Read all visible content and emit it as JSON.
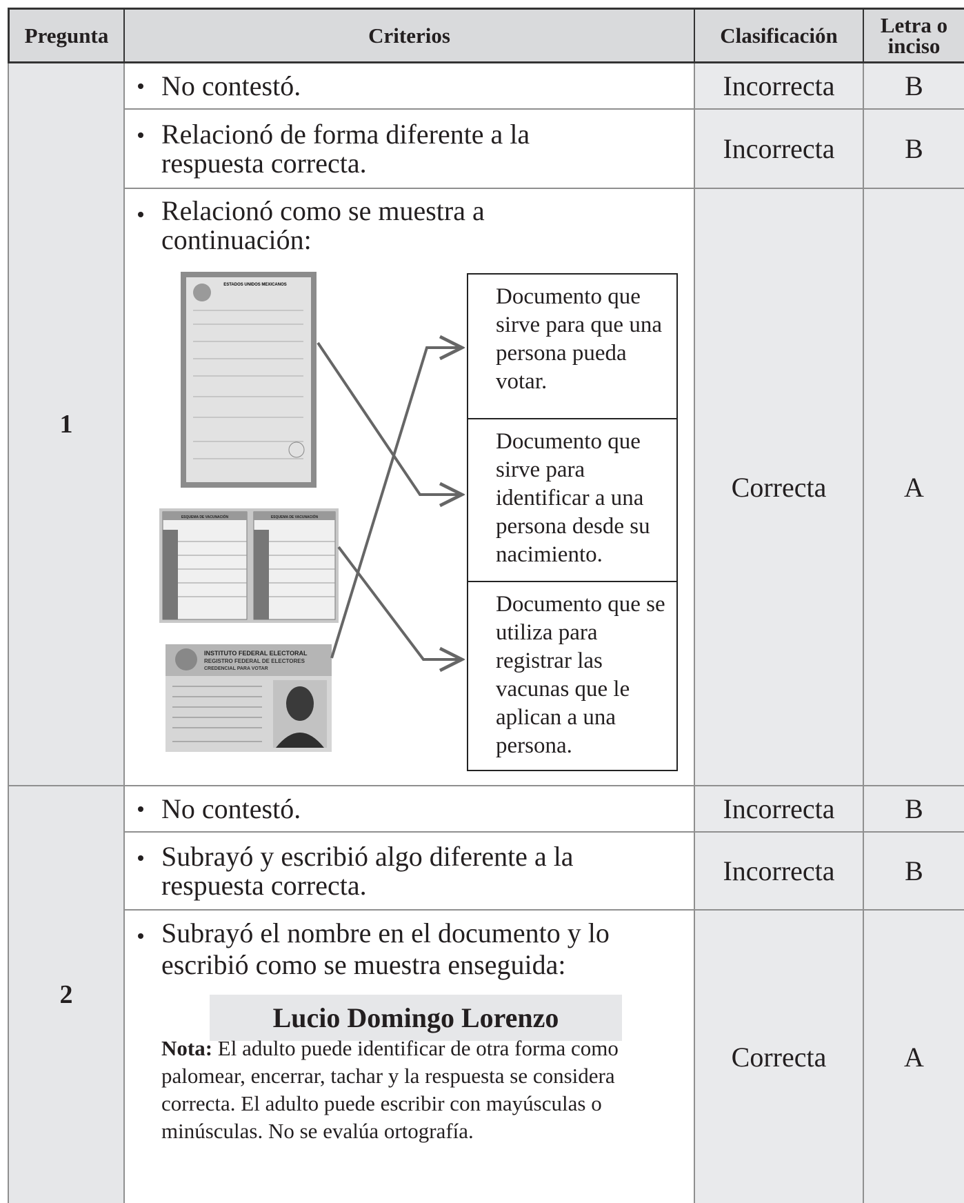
{
  "table": {
    "headers": [
      "Pregunta",
      "Criterios",
      "Clasificación",
      "Letra o inciso"
    ],
    "questions": [
      {
        "number": "1",
        "rows": [
          {
            "criterion": "No contestó.",
            "classification": "Incorrecta",
            "letter": "B"
          },
          {
            "criterion": "Relacionó de forma diferente a la respuesta correcta.",
            "classification": "Incorrecta",
            "letter": "B"
          },
          {
            "criterion": "Relacionó como se muestra a continuación:",
            "classification": "Correcta",
            "letter": "A",
            "boxes": [
              "Documento que sirve para que una persona pueda votar.",
              "Documento que sirve para identificar a una persona desde su nacimiento.",
              "Documento que se utiliza para registrar las vacunas que le aplican a una persona."
            ],
            "images": {
              "certificate": "ESTADOS UNIDOS MEXICANOS",
              "vaccination": [
                "ESQUEMA DE VACUNACIÓN",
                "ESQUEMA DE VACUNACIÓN"
              ],
              "voter_id": [
                "INSTITUTO FEDERAL ELECTORAL",
                "REGISTRO FEDERAL DE ELECTORES",
                "CREDENCIAL PARA VOTAR"
              ]
            }
          }
        ]
      },
      {
        "number": "2",
        "rows": [
          {
            "criterion": "No contestó.",
            "classification": "Incorrecta",
            "letter": "B"
          },
          {
            "criterion": "Subrayó y escribió algo diferente a la respuesta correcta.",
            "classification": "Incorrecta",
            "letter": "B"
          },
          {
            "criterion": "Subrayó el nombre en el documento y lo escribió como se muestra enseguida:",
            "classification": "Correcta",
            "letter": "A",
            "answer": "Lucio Domingo Lorenzo",
            "note_label": "Nota:",
            "note": "El adulto puede identificar de otra forma como palomear, encerrar, tachar y la respuesta se considera correcta. El adulto puede escribir con mayúsculas o minúsculas. No se evalúa ortografía."
          }
        ]
      }
    ]
  }
}
